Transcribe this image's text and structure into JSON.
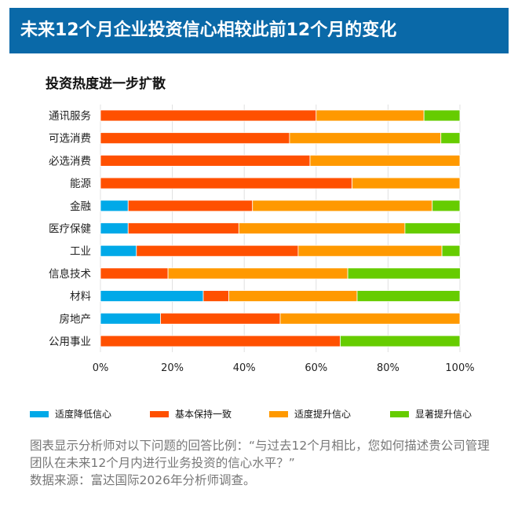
{
  "header": {
    "title": "未来12个月企业投资信心相较此前12个月的变化"
  },
  "chart_data": {
    "type": "bar",
    "orientation": "horizontal",
    "stacked": true,
    "title": "投资热度进一步扩散",
    "categories": [
      "通讯服务",
      "可选消费",
      "必选消费",
      "能源",
      "金融",
      "医疗保健",
      "工业",
      "信息技术",
      "材料",
      "房地产",
      "公用事业"
    ],
    "series": [
      {
        "name": "适度降低信心",
        "color": "#00a9e8",
        "values": [
          0,
          0,
          0,
          0,
          7.7,
          7.7,
          10,
          0,
          28.6,
          16.7,
          0
        ]
      },
      {
        "name": "基本保持一致",
        "color": "#ff5000",
        "values": [
          60,
          52.6,
          58.3,
          70,
          34.6,
          30.8,
          45,
          18.8,
          7.1,
          33.3,
          66.7
        ]
      },
      {
        "name": "适度提升信心",
        "color": "#ff9900",
        "values": [
          30,
          42.1,
          41.7,
          30,
          50,
          46.2,
          40,
          50,
          35.7,
          50,
          0
        ]
      },
      {
        "name": "显著提升信心",
        "color": "#66cc00",
        "values": [
          10,
          5.3,
          0,
          0,
          7.7,
          15.4,
          5,
          31.3,
          28.6,
          0,
          33.3
        ]
      }
    ],
    "xlim": [
      0,
      100
    ],
    "xticks": [
      "0%",
      "20%",
      "40%",
      "60%",
      "80%",
      "100%"
    ],
    "grid": true,
    "legend_position": "bottom"
  },
  "footnote": {
    "line1": "图表显示分析师对以下问题的回答比例：“与过去12个月相比，您如何描述贵公司管理团队在未来12个月内进行业务投资的信心水平？”",
    "line2": "数据来源：富达国际2026年分析师调查。"
  }
}
